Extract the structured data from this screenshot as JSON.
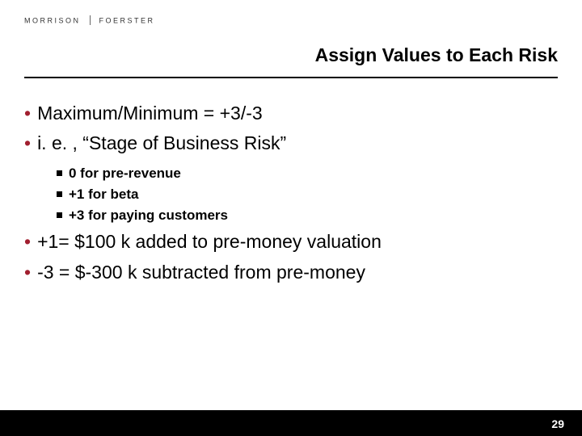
{
  "logo": {
    "left": "MORRISON",
    "right": "FOERSTER"
  },
  "title": "Assign Values to Each Risk",
  "bullets": {
    "b0": "Maximum/Minimum = +3/-3",
    "b1": "i. e. , “Stage of Business Risk”",
    "s0": "0 for pre-revenue",
    "s1": "+1 for beta",
    "s2": "+3 for paying customers",
    "b2": "+1= $100 k added to pre-money valuation",
    "b3": "-3 = $-300 k subtracted from pre-money"
  },
  "accent_color": "#a11f2f",
  "footer_bg": "#000000",
  "page_number": "29"
}
